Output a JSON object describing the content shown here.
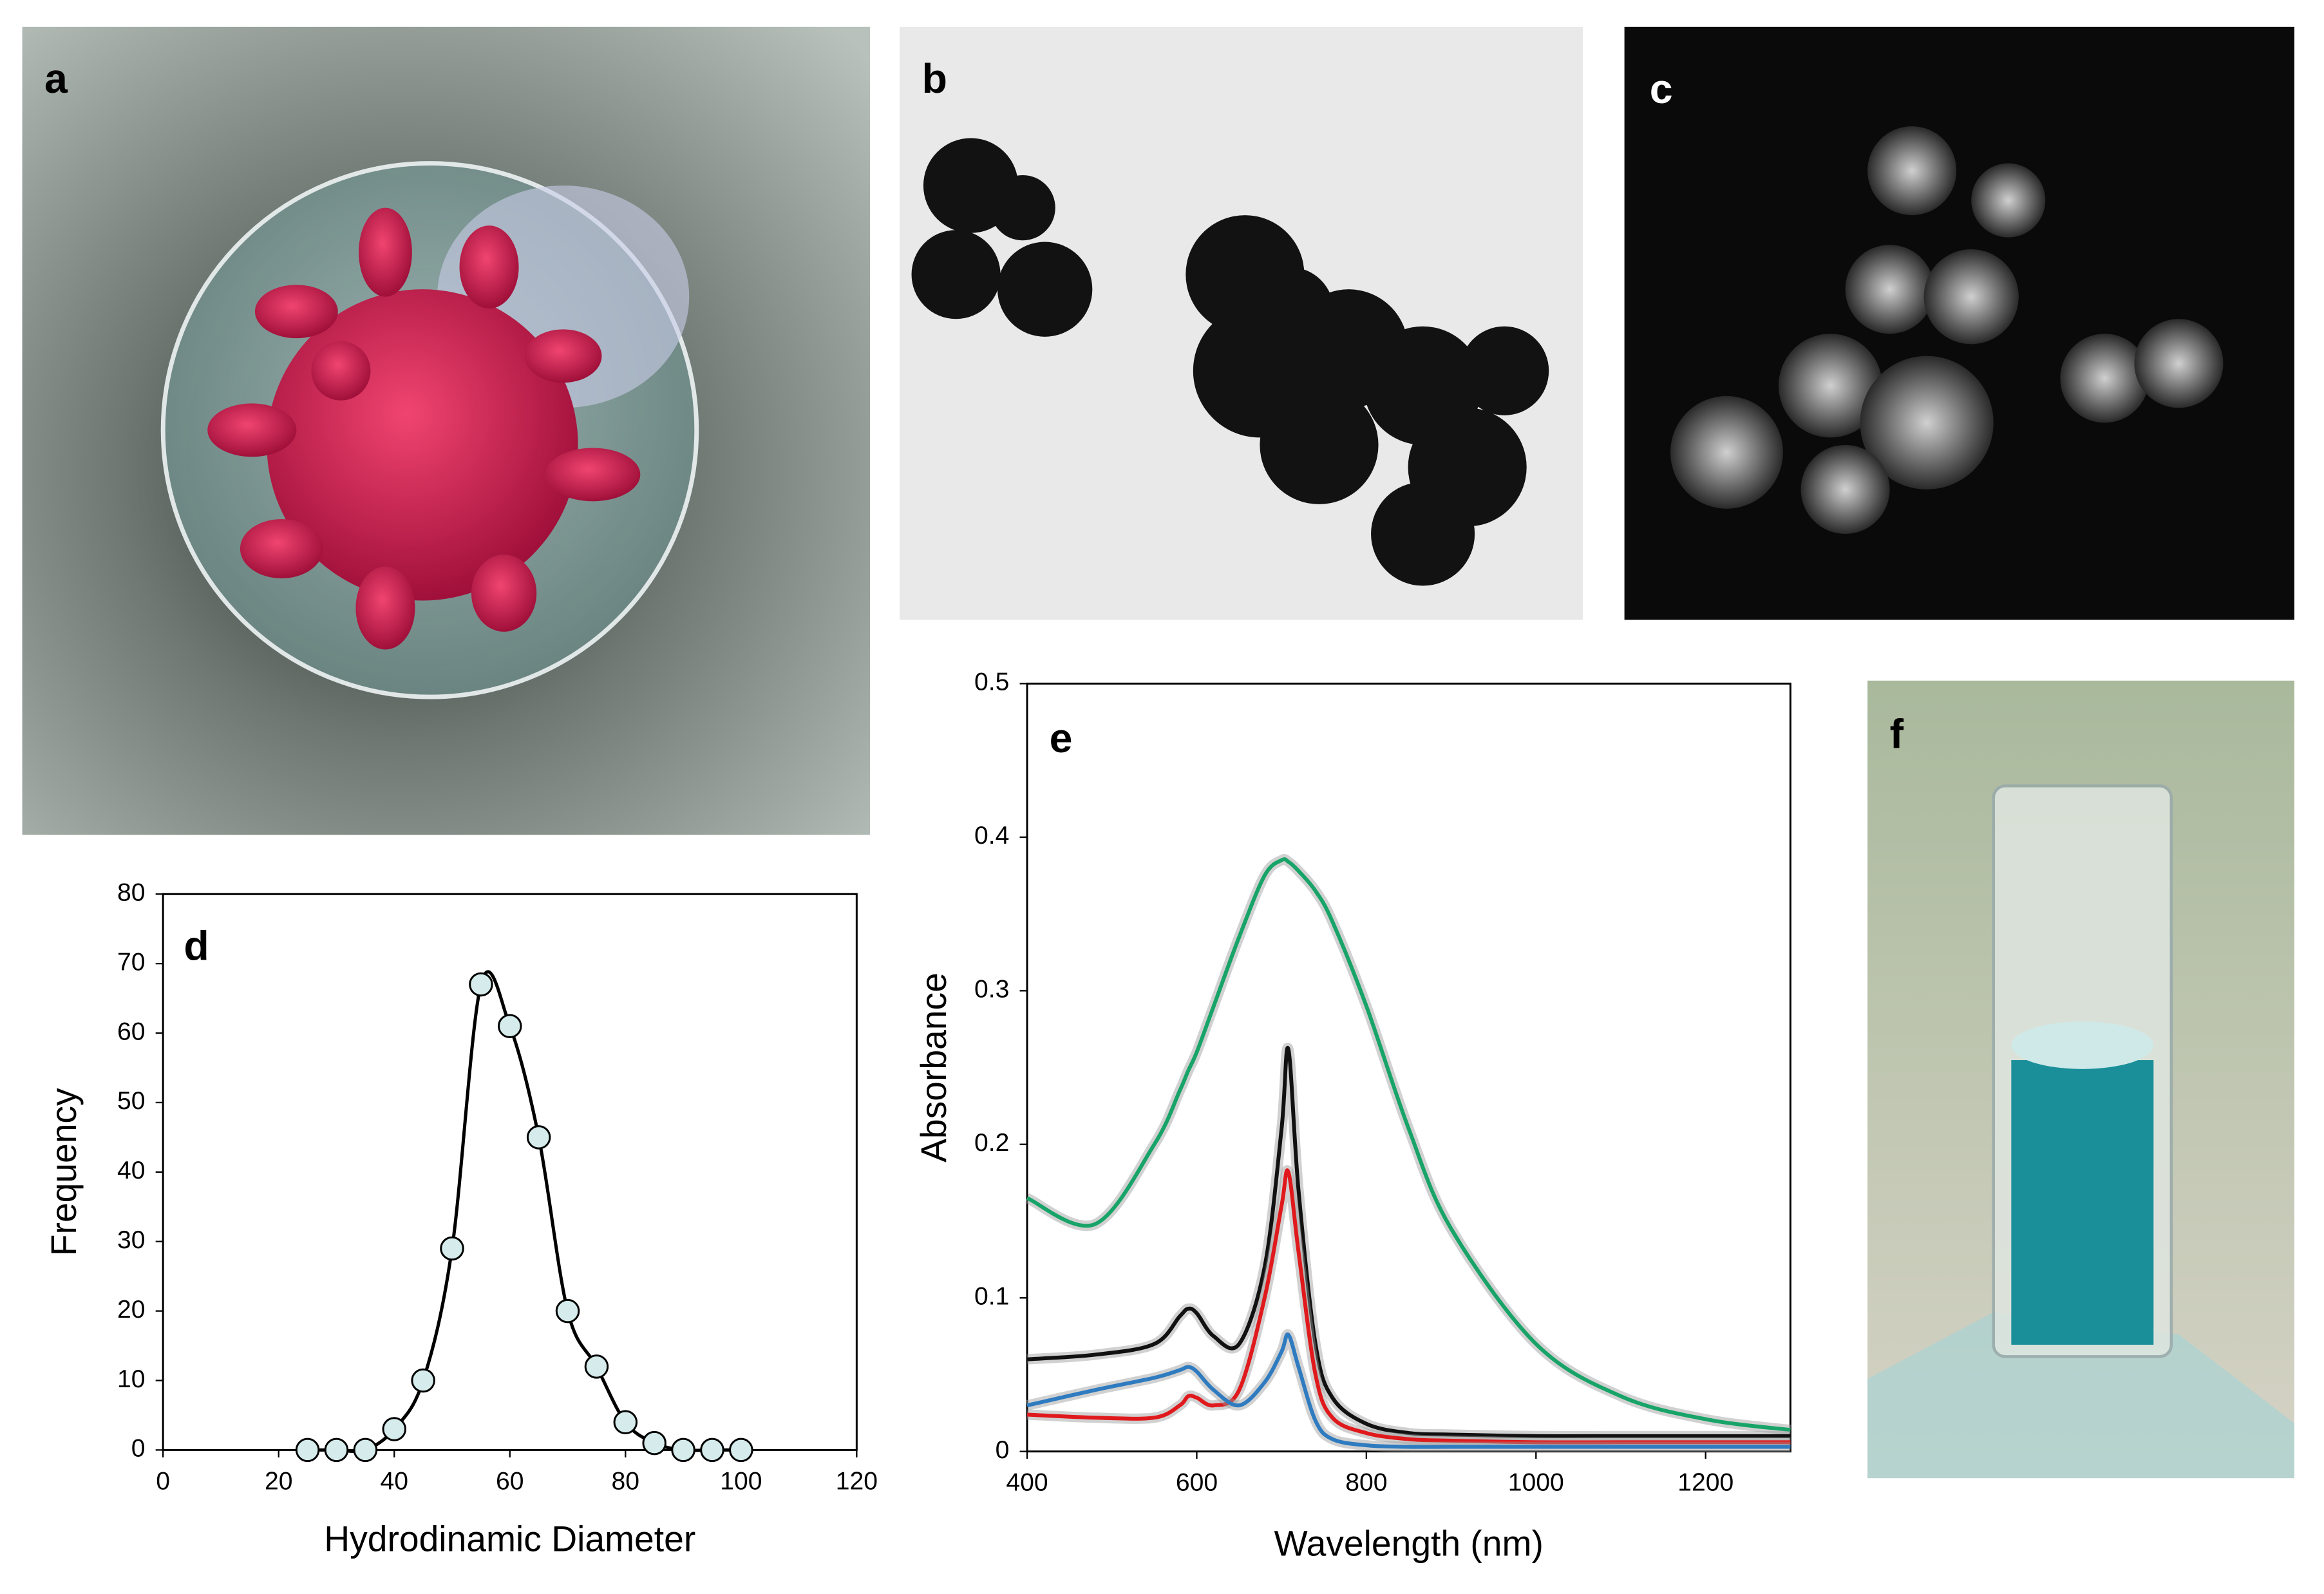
{
  "panel_labels": [
    "a",
    "b",
    "c",
    "f"
  ],
  "chart_data": [
    {
      "type": "line",
      "label": "d",
      "xlabel": "Hydrodinamic Diameter",
      "ylabel": "Frequency",
      "x": [
        25,
        30,
        35,
        40,
        45,
        50,
        55,
        60,
        65,
        70,
        75,
        80,
        85,
        90,
        95,
        100
      ],
      "series": [
        {
          "color": "#000000",
          "values": [
            0,
            0,
            0,
            3,
            10,
            29,
            67,
            61,
            45,
            20,
            12,
            4,
            1,
            0,
            0,
            0
          ]
        }
      ],
      "markers": true,
      "marker_color": "#d6ecec",
      "xlim": [
        0,
        120
      ],
      "xticks": [
        0,
        20,
        40,
        60,
        80,
        100,
        120
      ],
      "ylim": [
        0,
        80
      ],
      "yticks": [
        0,
        10,
        20,
        30,
        40,
        50,
        60,
        70,
        80
      ]
    },
    {
      "type": "line",
      "label": "e",
      "xlabel": "Wavelength (nm)",
      "ylabel": "Absorbance",
      "x": [
        400,
        480,
        550,
        580,
        590,
        600,
        620,
        650,
        680,
        700,
        708,
        720,
        740,
        760,
        800,
        850,
        900,
        1000,
        1100,
        1200,
        1300
      ],
      "series": [
        {
          "color": "#18a468",
          "values": [
            0.165,
            0.148,
            0.2,
            0.235,
            0.248,
            0.26,
            0.29,
            0.335,
            0.375,
            0.385,
            0.384,
            0.378,
            0.365,
            0.345,
            0.29,
            0.21,
            0.145,
            0.07,
            0.036,
            0.021,
            0.014
          ]
        },
        {
          "color": "#111111",
          "values": [
            0.06,
            0.063,
            0.07,
            0.088,
            0.093,
            0.09,
            0.075,
            0.07,
            0.12,
            0.21,
            0.262,
            0.17,
            0.07,
            0.035,
            0.018,
            0.012,
            0.011,
            0.01,
            0.01,
            0.01,
            0.01
          ]
        },
        {
          "color": "#e0191c",
          "values": [
            0.024,
            0.022,
            0.022,
            0.03,
            0.036,
            0.035,
            0.03,
            0.04,
            0.1,
            0.16,
            0.182,
            0.13,
            0.05,
            0.022,
            0.012,
            0.008,
            0.007,
            0.006,
            0.006,
            0.006,
            0.006
          ]
        },
        {
          "color": "#2f7bc0",
          "values": [
            0.03,
            0.04,
            0.048,
            0.053,
            0.055,
            0.052,
            0.04,
            0.03,
            0.045,
            0.065,
            0.076,
            0.055,
            0.02,
            0.008,
            0.004,
            0.003,
            0.003,
            0.003,
            0.003,
            0.003,
            0.003
          ]
        }
      ],
      "markers": false,
      "xlim": [
        400,
        1300
      ],
      "xticks": [
        400,
        600,
        800,
        1000,
        1200
      ],
      "ylim": [
        0,
        0.5
      ],
      "yticks": [
        0,
        0.1,
        0.2,
        0.3,
        0.4,
        0.5
      ]
    }
  ]
}
